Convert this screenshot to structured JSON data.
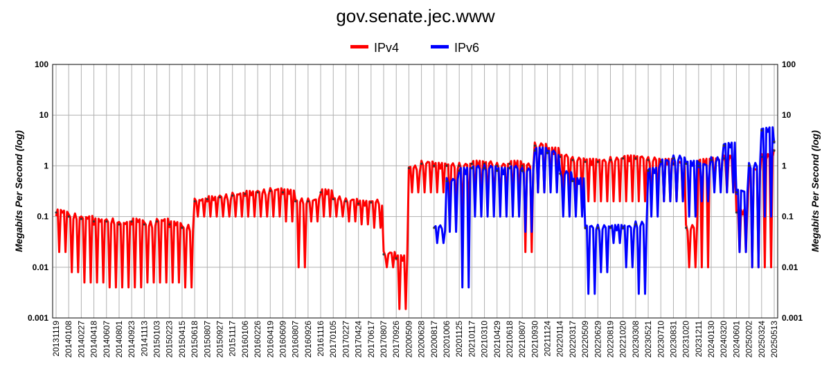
{
  "chart_data": {
    "type": "line",
    "title": "gov.senate.jec.www",
    "ylabel": "Megabits Per Second (log)",
    "xlabel": "",
    "y_scale": "log",
    "ylim": [
      0.001,
      100
    ],
    "y_ticks": [
      "0.001",
      "0.01",
      "0.1",
      "1",
      "10",
      "100"
    ],
    "grid": true,
    "legend_position": "top-center",
    "categories": [
      "20131119",
      "20140108",
      "20140227",
      "20140418",
      "20140607",
      "20140801",
      "20140923",
      "20141113",
      "20150103",
      "20150223",
      "20150415",
      "20150618",
      "20150807",
      "20150927",
      "20151117",
      "20160106",
      "20160226",
      "20160419",
      "20160609",
      "20160807",
      "20160926",
      "20161116",
      "20170105",
      "20170227",
      "20170424",
      "20170617",
      "20170807",
      "20170926",
      "20200509",
      "20200628",
      "20200817",
      "20201006",
      "20201125",
      "20210117",
      "20210310",
      "20210429",
      "20210618",
      "20210807",
      "20210930",
      "20211124",
      "20220114",
      "20220317",
      "20220509",
      "20220629",
      "20220819",
      "20221020",
      "20230308",
      "20230521",
      "20230710",
      "20230831",
      "20231020",
      "20231211",
      "20240130",
      "20240320",
      "20240601",
      "20250202",
      "20250324",
      "20250513"
    ],
    "series": [
      {
        "name": "IPv4",
        "color": "#ff0000",
        "values": [
          0.12,
          0.1,
          0.09,
          0.08,
          0.08,
          0.07,
          0.08,
          0.07,
          0.08,
          0.07,
          0.06,
          0.2,
          0.22,
          0.24,
          0.26,
          0.28,
          0.3,
          0.32,
          0.3,
          0.2,
          0.2,
          0.3,
          0.22,
          0.2,
          0.18,
          0.19,
          0.018,
          0.015,
          0.9,
          1.1,
          1.0,
          1.0,
          1.0,
          1.1,
          1.1,
          1.0,
          1.1,
          1.0,
          2.5,
          2.0,
          1.5,
          1.3,
          1.2,
          1.2,
          1.3,
          1.4,
          1.4,
          1.3,
          1.2,
          1.1,
          0.06,
          1.2,
          1.3,
          1.4,
          0.12,
          0.8,
          1.5,
          2.0
        ],
        "min_values": [
          0.02,
          0.008,
          0.005,
          0.005,
          0.004,
          0.004,
          0.004,
          0.005,
          0.005,
          0.005,
          0.004,
          0.1,
          0.1,
          0.1,
          0.1,
          0.1,
          0.1,
          0.1,
          0.08,
          0.01,
          0.08,
          0.1,
          0.1,
          0.08,
          0.07,
          0.06,
          0.01,
          0.0015,
          0.3,
          0.3,
          0.3,
          0.1,
          0.1,
          0.2,
          0.2,
          0.2,
          0.2,
          0.02,
          0.3,
          0.4,
          0.3,
          0.2,
          0.2,
          0.2,
          0.2,
          0.2,
          0.2,
          0.2,
          0.2,
          0.2,
          0.01,
          0.01,
          0.4,
          0.3,
          0.02,
          0.01,
          0.01,
          0.2
        ]
      },
      {
        "name": "IPv6",
        "color": "#0000ff",
        "values": [
          null,
          null,
          null,
          null,
          null,
          null,
          null,
          null,
          null,
          null,
          null,
          null,
          null,
          null,
          null,
          null,
          null,
          null,
          null,
          null,
          null,
          null,
          null,
          null,
          null,
          null,
          null,
          null,
          null,
          null,
          0.06,
          0.5,
          0.8,
          0.9,
          0.9,
          0.8,
          0.9,
          0.8,
          2.0,
          1.8,
          0.7,
          0.5,
          0.06,
          0.06,
          0.06,
          0.06,
          0.07,
          0.8,
          1.2,
          1.4,
          1.1,
          1.0,
          1.3,
          2.5,
          0.3,
          1.0,
          5.0,
          3.0
        ],
        "min_values": [
          null,
          null,
          null,
          null,
          null,
          null,
          null,
          null,
          null,
          null,
          null,
          null,
          null,
          null,
          null,
          null,
          null,
          null,
          null,
          null,
          null,
          null,
          null,
          null,
          null,
          null,
          null,
          null,
          null,
          null,
          0.03,
          0.05,
          0.004,
          0.1,
          0.1,
          0.1,
          0.1,
          0.05,
          0.3,
          0.3,
          0.1,
          0.1,
          0.003,
          0.008,
          0.03,
          0.01,
          0.003,
          0.1,
          0.2,
          0.2,
          0.1,
          0.2,
          0.3,
          0.3,
          0.02,
          0.01,
          0.1,
          0.1
        ]
      }
    ]
  }
}
